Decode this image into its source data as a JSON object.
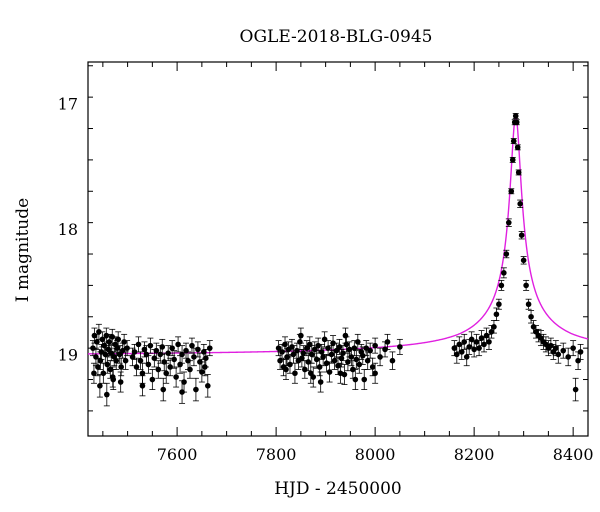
{
  "chart_data": {
    "type": "scatter",
    "title": "OGLE-2018-BLG-0945",
    "xlabel": "HJD - 2450000",
    "ylabel": "I magnitude",
    "xlim": [
      7420,
      8430
    ],
    "ylim": [
      19.65,
      16.67
    ],
    "y_inverted": true,
    "x_ticks": [
      7600,
      7800,
      8000,
      8200,
      8400
    ],
    "y_ticks": [
      17,
      18,
      19
    ],
    "grid": false,
    "marker_color": "#000000",
    "model_color": "#e020e0",
    "series": [
      {
        "values": [
          [
            7430,
            18.95,
            0.06
          ],
          [
            7433,
            18.85,
            0.06
          ],
          [
            7436,
            19.02,
            0.07
          ],
          [
            7438,
            18.9,
            0.06
          ],
          [
            7440,
            19.1,
            0.07
          ],
          [
            7442,
            18.82,
            0.06
          ],
          [
            7445,
            19.05,
            0.07
          ],
          [
            7447,
            18.98,
            0.06
          ],
          [
            7449,
            18.88,
            0.06
          ],
          [
            7451,
            19.15,
            0.08
          ],
          [
            7453,
            18.93,
            0.06
          ],
          [
            7455,
            19.0,
            0.07
          ],
          [
            7457,
            18.85,
            0.06
          ],
          [
            7459,
            19.08,
            0.07
          ],
          [
            7461,
            18.96,
            0.06
          ],
          [
            7463,
            18.9,
            0.06
          ],
          [
            7465,
            19.12,
            0.07
          ],
          [
            7467,
            18.99,
            0.06
          ],
          [
            7469,
            18.86,
            0.06
          ],
          [
            7471,
            19.2,
            0.08
          ],
          [
            7473,
            19.02,
            0.07
          ],
          [
            7475,
            18.92,
            0.06
          ],
          [
            7477,
            19.05,
            0.07
          ],
          [
            7479,
            18.95,
            0.06
          ],
          [
            7481,
            18.88,
            0.06
          ],
          [
            7484,
            19.0,
            0.07
          ],
          [
            7487,
            19.1,
            0.07
          ],
          [
            7490,
            18.97,
            0.06
          ],
          [
            7432,
            19.15,
            0.08
          ],
          [
            7444,
            19.25,
            0.09
          ],
          [
            7458,
            19.32,
            0.09
          ],
          [
            7470,
            19.18,
            0.08
          ],
          [
            7486,
            19.22,
            0.08
          ],
          [
            7493,
            18.9,
            0.06
          ],
          [
            7496,
            19.05,
            0.07
          ],
          [
            7499,
            18.95,
            0.06
          ],
          [
            7510,
            19.02,
            0.07
          ],
          [
            7514,
            18.98,
            0.06
          ],
          [
            7518,
            19.1,
            0.07
          ],
          [
            7522,
            18.92,
            0.06
          ],
          [
            7526,
            19.05,
            0.07
          ],
          [
            7530,
            19.15,
            0.08
          ],
          [
            7534,
            18.96,
            0.06
          ],
          [
            7538,
            19.0,
            0.07
          ],
          [
            7542,
            19.08,
            0.07
          ],
          [
            7546,
            18.93,
            0.06
          ],
          [
            7550,
            19.2,
            0.08
          ],
          [
            7554,
            19.03,
            0.07
          ],
          [
            7558,
            18.97,
            0.06
          ],
          [
            7562,
            19.12,
            0.07
          ],
          [
            7566,
            19.0,
            0.07
          ],
          [
            7570,
            18.94,
            0.06
          ],
          [
            7574,
            19.06,
            0.07
          ],
          [
            7578,
            19.15,
            0.08
          ],
          [
            7582,
            18.99,
            0.06
          ],
          [
            7586,
            19.1,
            0.07
          ],
          [
            7590,
            18.95,
            0.06
          ],
          [
            7594,
            19.04,
            0.07
          ],
          [
            7598,
            19.18,
            0.08
          ],
          [
            7602,
            18.92,
            0.06
          ],
          [
            7606,
            19.08,
            0.07
          ],
          [
            7610,
            19.0,
            0.07
          ],
          [
            7614,
            19.22,
            0.08
          ],
          [
            7618,
            18.97,
            0.06
          ],
          [
            7622,
            19.05,
            0.07
          ],
          [
            7626,
            19.12,
            0.07
          ],
          [
            7630,
            18.93,
            0.06
          ],
          [
            7634,
            19.02,
            0.07
          ],
          [
            7638,
            19.28,
            0.09
          ],
          [
            7642,
            18.96,
            0.06
          ],
          [
            7646,
            19.06,
            0.07
          ],
          [
            7650,
            19.14,
            0.08
          ],
          [
            7654,
            18.98,
            0.06
          ],
          [
            7658,
            19.03,
            0.07
          ],
          [
            7662,
            19.25,
            0.09
          ],
          [
            7666,
            18.95,
            0.06
          ],
          [
            7530,
            19.25,
            0.08
          ],
          [
            7572,
            19.28,
            0.09
          ],
          [
            7610,
            19.3,
            0.09
          ],
          [
            7656,
            19.1,
            0.07
          ],
          [
            7805,
            18.95,
            0.06
          ],
          [
            7808,
            19.05,
            0.07
          ],
          [
            7812,
            18.98,
            0.06
          ],
          [
            7815,
            19.1,
            0.07
          ],
          [
            7818,
            18.92,
            0.06
          ],
          [
            7822,
            19.02,
            0.07
          ],
          [
            7825,
            18.96,
            0.06
          ],
          [
            7828,
            19.08,
            0.07
          ],
          [
            7832,
            18.94,
            0.06
          ],
          [
            7835,
            19.0,
            0.07
          ],
          [
            7838,
            19.15,
            0.08
          ],
          [
            7842,
            18.97,
            0.06
          ],
          [
            7845,
            19.05,
            0.07
          ],
          [
            7848,
            18.9,
            0.06
          ],
          [
            7852,
            19.03,
            0.07
          ],
          [
            7855,
            18.99,
            0.06
          ],
          [
            7858,
            19.12,
            0.07
          ],
          [
            7862,
            18.95,
            0.06
          ],
          [
            7865,
            19.06,
            0.07
          ],
          [
            7868,
            18.92,
            0.06
          ],
          [
            7872,
            19.0,
            0.07
          ],
          [
            7875,
            19.18,
            0.08
          ],
          [
            7878,
            18.96,
            0.06
          ],
          [
            7882,
            19.04,
            0.07
          ],
          [
            7885,
            18.93,
            0.06
          ],
          [
            7888,
            19.1,
            0.07
          ],
          [
            7892,
            18.98,
            0.06
          ],
          [
            7895,
            19.02,
            0.07
          ],
          [
            7898,
            18.88,
            0.06
          ],
          [
            7902,
            19.07,
            0.07
          ],
          [
            7905,
            18.95,
            0.06
          ],
          [
            7908,
            19.14,
            0.08
          ],
          [
            7912,
            19.0,
            0.07
          ],
          [
            7915,
            18.91,
            0.06
          ],
          [
            7918,
            19.05,
            0.07
          ],
          [
            7922,
            18.97,
            0.06
          ],
          [
            7925,
            19.09,
            0.07
          ],
          [
            7928,
            18.94,
            0.06
          ],
          [
            7932,
            19.03,
            0.07
          ],
          [
            7935,
            18.99,
            0.06
          ],
          [
            7938,
            19.16,
            0.08
          ],
          [
            7942,
            18.92,
            0.06
          ],
          [
            7945,
            19.06,
            0.07
          ],
          [
            7948,
            18.96,
            0.06
          ],
          [
            7952,
            19.02,
            0.07
          ],
          [
            7955,
            19.12,
            0.07
          ],
          [
            7958,
            18.95,
            0.06
          ],
          [
            7962,
            19.04,
            0.07
          ],
          [
            7965,
            18.9,
            0.06
          ],
          [
            7968,
            19.08,
            0.07
          ],
          [
            7972,
            18.98,
            0.06
          ],
          [
            7975,
            19.01,
            0.07
          ],
          [
            7978,
            19.2,
            0.08
          ],
          [
            7982,
            18.95,
            0.06
          ],
          [
            7985,
            19.05,
            0.07
          ],
          [
            7990,
            18.97,
            0.06
          ],
          [
            7995,
            19.1,
            0.07
          ],
          [
            8000,
            18.93,
            0.06
          ],
          [
            8010,
            19.02,
            0.07
          ],
          [
            8020,
            18.96,
            0.06
          ],
          [
            8035,
            19.05,
            0.07
          ],
          [
            8050,
            18.94,
            0.06
          ],
          [
            7820,
            19.12,
            0.08
          ],
          [
            7870,
            19.15,
            0.08
          ],
          [
            7890,
            19.22,
            0.08
          ],
          [
            7930,
            19.15,
            0.08
          ],
          [
            7960,
            19.2,
            0.08
          ],
          [
            8000,
            19.15,
            0.08
          ],
          [
            8025,
            18.9,
            0.06
          ],
          [
            7850,
            18.85,
            0.06
          ],
          [
            7940,
            18.85,
            0.06
          ],
          [
            8160,
            18.95,
            0.06
          ],
          [
            8165,
            19.0,
            0.07
          ],
          [
            8170,
            18.92,
            0.06
          ],
          [
            8175,
            18.98,
            0.06
          ],
          [
            8180,
            18.9,
            0.06
          ],
          [
            8185,
            19.02,
            0.07
          ],
          [
            8190,
            18.94,
            0.06
          ],
          [
            8195,
            18.88,
            0.06
          ],
          [
            8200,
            18.96,
            0.06
          ],
          [
            8205,
            18.9,
            0.06
          ],
          [
            8210,
            18.95,
            0.06
          ],
          [
            8215,
            18.87,
            0.06
          ],
          [
            8220,
            18.92,
            0.06
          ],
          [
            8225,
            18.85,
            0.06
          ],
          [
            8230,
            18.9,
            0.06
          ],
          [
            8235,
            18.82,
            0.05
          ],
          [
            8240,
            18.78,
            0.05
          ],
          [
            8245,
            18.68,
            0.05
          ],
          [
            8250,
            18.6,
            0.04
          ],
          [
            8255,
            18.45,
            0.04
          ],
          [
            8260,
            18.35,
            0.04
          ],
          [
            8265,
            18.2,
            0.03
          ],
          [
            8270,
            17.95,
            0.03
          ],
          [
            8275,
            17.7,
            0.02
          ],
          [
            8278,
            17.45,
            0.02
          ],
          [
            8280,
            17.3,
            0.02
          ],
          [
            8282,
            17.15,
            0.02
          ],
          [
            8284,
            17.1,
            0.02
          ],
          [
            8286,
            17.15,
            0.02
          ],
          [
            8288,
            17.35,
            0.02
          ],
          [
            8290,
            17.55,
            0.02
          ],
          [
            8293,
            17.8,
            0.03
          ],
          [
            8296,
            18.05,
            0.03
          ],
          [
            8300,
            18.25,
            0.03
          ],
          [
            8305,
            18.45,
            0.04
          ],
          [
            8310,
            18.6,
            0.04
          ],
          [
            8315,
            18.7,
            0.05
          ],
          [
            8320,
            18.78,
            0.05
          ],
          [
            8325,
            18.82,
            0.05
          ],
          [
            8330,
            18.85,
            0.05
          ],
          [
            8335,
            18.87,
            0.06
          ],
          [
            8340,
            18.9,
            0.06
          ],
          [
            8345,
            18.92,
            0.06
          ],
          [
            8350,
            18.95,
            0.06
          ],
          [
            8355,
            18.93,
            0.06
          ],
          [
            8360,
            18.98,
            0.06
          ],
          [
            8365,
            18.95,
            0.06
          ],
          [
            8370,
            19.0,
            0.07
          ],
          [
            8380,
            18.97,
            0.06
          ],
          [
            8390,
            19.02,
            0.07
          ],
          [
            8400,
            18.95,
            0.06
          ],
          [
            8405,
            19.28,
            0.09
          ],
          [
            8410,
            19.05,
            0.07
          ],
          [
            8415,
            18.98,
            0.06
          ]
        ]
      }
    ]
  }
}
